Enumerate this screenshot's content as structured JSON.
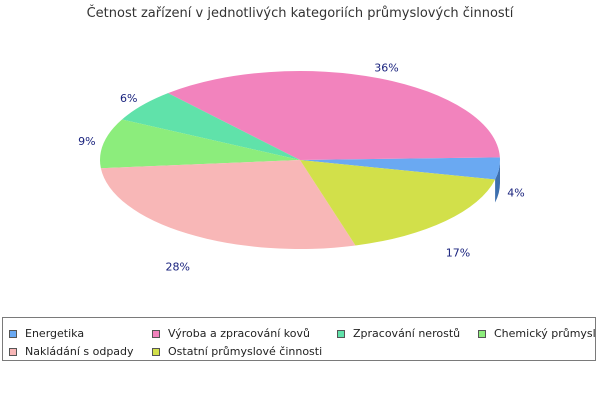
{
  "chart_data": {
    "type": "pie",
    "title": "Četnost zařízení v jednotlivých kategoriích průmyslových činností",
    "series": [
      {
        "name": "Energetika",
        "value": 4,
        "label": "4%",
        "color": "#6aa9f2",
        "side": "#3d6fae"
      },
      {
        "name": "Výroba a zpracování kovů",
        "value": 36,
        "label": "36%",
        "color": "#f283bd",
        "side": "#a8527f"
      },
      {
        "name": "Zpracování nerostů",
        "value": 6,
        "label": "6%",
        "color": "#60e2aa",
        "side": "#2f9a6a"
      },
      {
        "name": "Chemický průmysl",
        "value": 9,
        "label": "9%",
        "color": "#8ced7c",
        "side": "#2e9b2e"
      },
      {
        "name": "Nakládání s odpady",
        "value": 28,
        "label": "28%",
        "color": "#f8b7b7",
        "side": "#a05c5c"
      },
      {
        "name": "Ostatní průmyslové činnosti",
        "value": 17,
        "label": "17%",
        "color": "#d2e04a",
        "side": "#7d8a12"
      }
    ],
    "legend_position": "bottom"
  }
}
